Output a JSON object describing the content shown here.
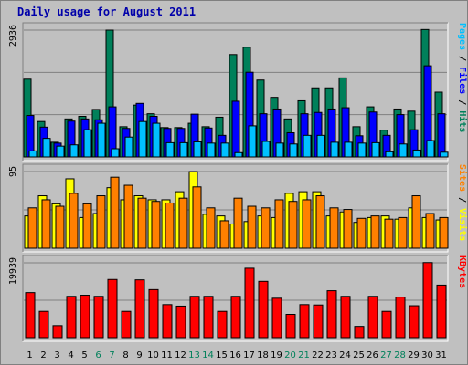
{
  "chart_data": {
    "type": "bar",
    "title": "Daily usage for August 2011",
    "categories": [
      "1",
      "2",
      "3",
      "4",
      "5",
      "6",
      "7",
      "8",
      "9",
      "10",
      "11",
      "12",
      "13",
      "14",
      "15",
      "16",
      "17",
      "18",
      "19",
      "20",
      "21",
      "22",
      "23",
      "24",
      "25",
      "26",
      "27",
      "28",
      "29",
      "30",
      "31"
    ],
    "weekend_days": [
      "6",
      "7",
      "13",
      "14",
      "20",
      "21",
      "27",
      "28"
    ],
    "colors": {
      "title": "#0000aa",
      "background": "#c0c0c0",
      "hits": "#00805a",
      "files": "#0000ff",
      "pages": "#00c0ff",
      "visits": "#ffff00",
      "sites": "#ff8000",
      "kbytes": "#ff0000",
      "weekday_tick": "#000000",
      "weekend_tick": "#00805a",
      "side_label_hits": "#00805a",
      "side_label_files": "#0000ff",
      "side_label_pages": "#00c0ff",
      "side_label_sites": "#ff8000",
      "side_label_visits": "#ffff00",
      "side_label_kbytes": "#ff0000"
    },
    "panels": [
      {
        "id": "hits",
        "max_label": "2936",
        "ylim": [
          0,
          2936
        ],
        "side_labels": [
          {
            "key": "pages",
            "text": "Pages"
          },
          {
            "key": "sep",
            "text": " / "
          },
          {
            "key": "files",
            "text": "Files"
          },
          {
            "key": "sep",
            "text": " / "
          },
          {
            "key": "hits",
            "text": "Hits"
          }
        ],
        "series": [
          {
            "name": "Hits",
            "color_key": "hits",
            "values": [
              1800,
              820,
              340,
              880,
              940,
              1100,
              2936,
              700,
              1200,
              1000,
              680,
              680,
              780,
              700,
              920,
              2370,
              2540,
              1780,
              1380,
              880,
              1300,
              1600,
              1600,
              1830,
              700,
              1160,
              620,
              1110,
              1060,
              2950,
              1500
            ]
          },
          {
            "name": "Files",
            "color_key": "files",
            "values": [
              960,
              690,
              320,
              830,
              880,
              860,
              1160,
              660,
              1240,
              940,
              660,
              660,
              990,
              670,
              500,
              1290,
              1960,
              1000,
              1110,
              560,
              1000,
              1030,
              1110,
              1140,
              490,
              1040,
              500,
              980,
              630,
              2110,
              1000
            ]
          },
          {
            "name": "Pages",
            "color_key": "pages",
            "values": [
              140,
              430,
              250,
              280,
              630,
              780,
              190,
              460,
              820,
              780,
              330,
              330,
              350,
              320,
              320,
              100,
              720,
              360,
              320,
              300,
              500,
              500,
              340,
              340,
              320,
              330,
              120,
              300,
              160,
              380,
              110
            ]
          }
        ]
      },
      {
        "id": "visits",
        "max_label": "95",
        "ylim": [
          0,
          95
        ],
        "side_labels": [
          {
            "key": "sites",
            "text": "Sites"
          },
          {
            "key": "sep",
            "text": " / "
          },
          {
            "key": "visits",
            "text": "Visits"
          }
        ],
        "series": [
          {
            "name": "Visits",
            "color_key": "visits",
            "values": [
              40,
              65,
              55,
              86,
              38,
              43,
              75,
              60,
              65,
              60,
              60,
              70,
              95,
              42,
              40,
              30,
              33,
              40,
              38,
              68,
              70,
              70,
              40,
              45,
              32,
              38,
              40,
              36,
              50,
              38,
              35
            ]
          },
          {
            "name": "Sites",
            "color_key": "sites",
            "values": [
              50,
              60,
              52,
              68,
              55,
              65,
              88,
              78,
              62,
              58,
              56,
              62,
              76,
              50,
              34,
              62,
              52,
              50,
              60,
              58,
              60,
              65,
              50,
              48,
              37,
              40,
              36,
              38,
              65,
              43,
              38
            ]
          }
        ]
      },
      {
        "id": "kbytes",
        "max_label": "19939",
        "ylim": [
          0,
          19939
        ],
        "side_labels": [
          {
            "key": "kbytes",
            "text": "KBytes"
          }
        ],
        "series": [
          {
            "name": "KBytes",
            "color_key": "kbytes",
            "values": [
              12000,
              7000,
              3200,
              11000,
              11300,
              11000,
              15500,
              7000,
              15400,
              12800,
              8800,
              8400,
              11000,
              11000,
              7000,
              11000,
              18500,
              15000,
              10500,
              6200,
              8800,
              8700,
              12500,
              11000,
              3000,
              11000,
              7000,
              10800,
              8500,
              20000,
              14000
            ]
          }
        ]
      }
    ]
  }
}
